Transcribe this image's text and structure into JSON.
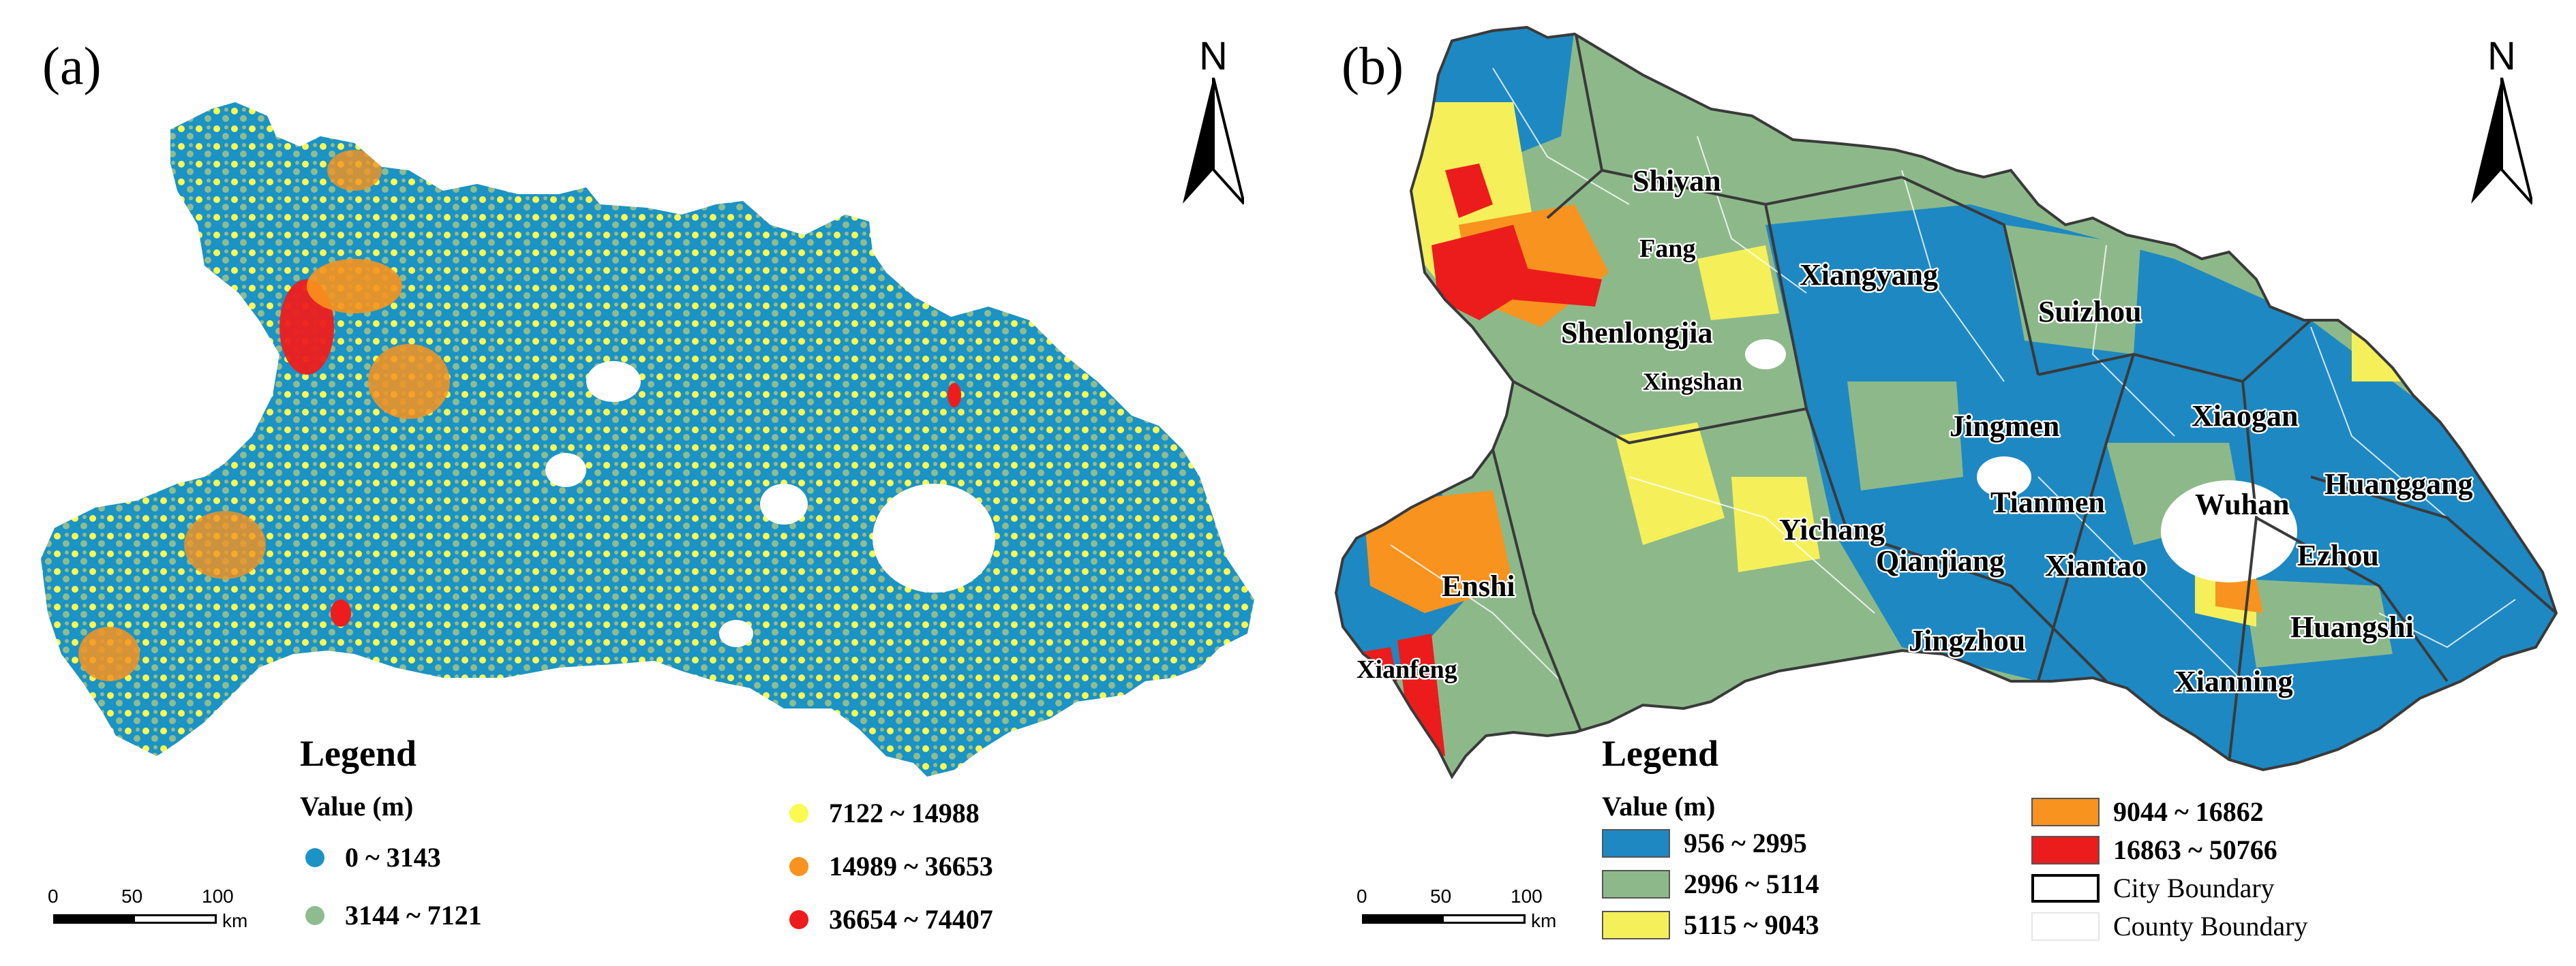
{
  "panel_a": {
    "label": "(a)",
    "north": "N",
    "legend_title": "Legend",
    "legend_subtitle": "Value (m)",
    "classes": [
      {
        "range": "0 ~ 3143",
        "color": "#1b93c4"
      },
      {
        "range": "3144 ~ 7121",
        "color": "#8fbc8f"
      },
      {
        "range": "7122 ~ 14988",
        "color": "#fafa50"
      },
      {
        "range": "14989 ~ 36653",
        "color": "#f7931e"
      },
      {
        "range": "36654 ~ 74407",
        "color": "#ee1c1c"
      }
    ],
    "scale": {
      "ticks": [
        "0",
        "50",
        "100"
      ],
      "unit": "km"
    }
  },
  "panel_b": {
    "label": "(b)",
    "north": "N",
    "legend_title": "Legend",
    "legend_subtitle": "Value (m)",
    "classes": [
      {
        "range": "956 ~ 2995",
        "color": "#1e88c2"
      },
      {
        "range": "2996 ~ 5114",
        "color": "#8db98a"
      },
      {
        "range": "5115 ~ 9043",
        "color": "#f5f05a"
      },
      {
        "range": "9044 ~ 16862",
        "color": "#f7931e"
      },
      {
        "range": "16863 ~ 50766",
        "color": "#ec1c1c"
      }
    ],
    "boundaries": [
      {
        "label": "City Boundary",
        "style": "city"
      },
      {
        "label": "County Boundary",
        "style": "county"
      }
    ],
    "scale": {
      "ticks": [
        "0",
        "50",
        "100"
      ],
      "unit": "km"
    },
    "cities": [
      "Shiyan",
      "Fang",
      "Xiangyang",
      "Suizhou",
      "Shenlongjia",
      "Xingshan",
      "Jingmen",
      "Xiaogan",
      "Huanggang",
      "Yichang",
      "Tianmen",
      "Wuhan",
      "Enshi",
      "Qianjiang",
      "Xiantao",
      "Ezhou",
      "Huangshi",
      "Xianfeng",
      "Jingzhou",
      "Xianning"
    ]
  }
}
